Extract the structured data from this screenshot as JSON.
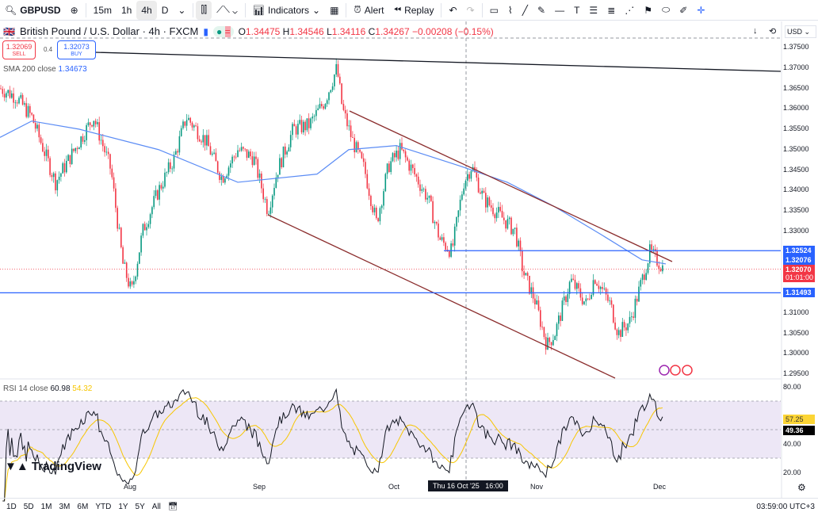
{
  "toolbar": {
    "symbol": "GBPUSD",
    "intervals": [
      "15m",
      "1h",
      "4h",
      "D"
    ],
    "active_interval": "4h",
    "indicators": "Indicators",
    "alert": "Alert",
    "replay": "Replay"
  },
  "legend": {
    "title": "British Pound / U.S. Dollar · 4h · FXCM",
    "o": "1.34475",
    "h": "1.34546",
    "l": "1.34116",
    "c": "1.34267",
    "chg": "−0.00208 (−0.15%)",
    "o_label": "O",
    "h_label": "H",
    "l_label": "L",
    "c_label": "C"
  },
  "trade": {
    "sell_price": "1.32069",
    "sell": "SELL",
    "spread": "0.4",
    "buy_price": "1.32073",
    "buy": "BUY"
  },
  "sma": {
    "label": "SMA 200 close",
    "value": "1.34673"
  },
  "currency": "USD",
  "price_axis": [
    "1.37500",
    "1.37000",
    "1.36500",
    "1.36000",
    "1.35500",
    "1.35000",
    "1.34500",
    "1.34000",
    "1.33500",
    "1.33000",
    "1.31000",
    "1.30500",
    "1.30000",
    "1.29500"
  ],
  "price_tags": {
    "line1": "1.32524",
    "sma": "1.32076",
    "last": "1.32070",
    "countdown": "01:01:00",
    "line2": "1.31493"
  },
  "rsi": {
    "label": "RSI 14 close",
    "value": "60.98",
    "ma": "54.32",
    "tag_ma": "57.25",
    "tag_rsi": "49.36",
    "axis": [
      "80.00",
      "40.00",
      "20.00"
    ]
  },
  "time_axis": [
    "Aug",
    "Sep",
    "Oct",
    "Nov",
    "Dec"
  ],
  "crosshair_label": "Thu 16 Oct '25   16:00",
  "logo": "TradingView",
  "ranges": [
    "1D",
    "5D",
    "1M",
    "3M",
    "6M",
    "YTD",
    "1Y",
    "5Y",
    "All"
  ],
  "clock": "03:59:00 UTC+3",
  "colors": {
    "up": "#089981",
    "down": "#f23645",
    "sma": "#5b8cf5",
    "hline": "#2962ff",
    "channel": "#8b2d2d",
    "rsi_bg": "#ede7f6"
  },
  "chart_data": {
    "type": "candlestick",
    "price_path": [
      [
        0,
        1.365
      ],
      [
        20,
        1.363
      ],
      [
        40,
        1.358
      ],
      [
        70,
        1.342
      ],
      [
        100,
        1.352
      ],
      [
        118,
        1.358
      ],
      [
        140,
        1.345
      ],
      [
        155,
        1.322
      ],
      [
        166,
        1.315
      ],
      [
        180,
        1.33
      ],
      [
        200,
        1.34
      ],
      [
        220,
        1.348
      ],
      [
        235,
        1.358
      ],
      [
        260,
        1.352
      ],
      [
        280,
        1.343
      ],
      [
        300,
        1.35
      ],
      [
        320,
        1.348
      ],
      [
        338,
        1.335
      ],
      [
        350,
        1.345
      ],
      [
        370,
        1.355
      ],
      [
        390,
        1.356
      ],
      [
        410,
        1.362
      ],
      [
        425,
        1.37
      ],
      [
        432,
        1.36
      ],
      [
        445,
        1.352
      ],
      [
        460,
        1.345
      ],
      [
        475,
        1.332
      ],
      [
        490,
        1.346
      ],
      [
        505,
        1.35
      ],
      [
        520,
        1.345
      ],
      [
        540,
        1.338
      ],
      [
        555,
        1.328
      ],
      [
        570,
        1.325
      ],
      [
        585,
        1.342
      ],
      [
        595,
        1.346
      ],
      [
        610,
        1.338
      ],
      [
        630,
        1.334
      ],
      [
        650,
        1.33
      ],
      [
        660,
        1.32
      ],
      [
        675,
        1.313
      ],
      [
        690,
        1.302
      ],
      [
        700,
        1.305
      ],
      [
        720,
        1.318
      ],
      [
        740,
        1.312
      ],
      [
        750,
        1.319
      ],
      [
        770,
        1.312
      ],
      [
        780,
        1.305
      ],
      [
        795,
        1.308
      ],
      [
        810,
        1.318
      ],
      [
        820,
        1.325
      ],
      [
        838,
        1.3207
      ]
    ],
    "sma_path": [
      [
        0,
        1.353
      ],
      [
        40,
        1.357
      ],
      [
        100,
        1.355
      ],
      [
        200,
        1.35
      ],
      [
        300,
        1.342
      ],
      [
        400,
        1.344
      ],
      [
        440,
        1.35
      ],
      [
        500,
        1.351
      ],
      [
        580,
        1.346
      ],
      [
        640,
        1.342
      ],
      [
        700,
        1.336
      ],
      [
        760,
        1.329
      ],
      [
        810,
        1.323
      ],
      [
        840,
        1.322
      ]
    ]
  }
}
